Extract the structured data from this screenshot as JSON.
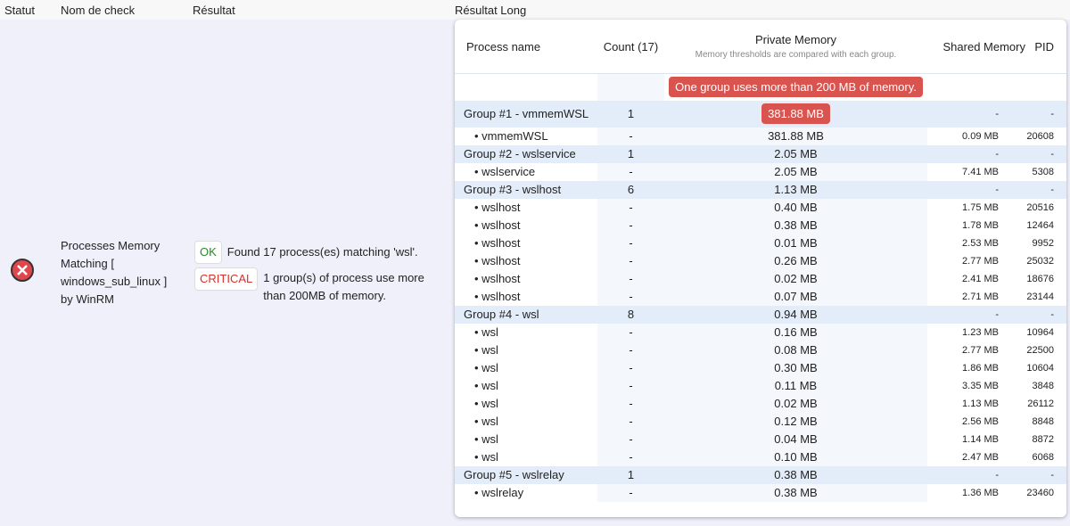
{
  "headers": [
    "Statut",
    "Nom de check",
    "Résultat",
    "Résultat Long"
  ],
  "check_name": "Processes Memory Matching [ windows_sub_linux ] by WinRM",
  "results": [
    {
      "badge": "OK",
      "text": "Found 17 process(es) matching 'wsl'."
    },
    {
      "badge": "CRITICAL",
      "text": "1 group(s) of process use more than 200MB of memory."
    }
  ],
  "table": {
    "columns": [
      "Process name",
      "Count (17)",
      "Private Memory",
      "Shared Memory",
      "PID"
    ],
    "private_memory_note": "Memory thresholds are compared with each group.",
    "alert": "One group uses more than 200 MB of memory.",
    "groups": [
      {
        "name": "Group #1 - vmmemWSL",
        "count": "1",
        "private": "381.88 MB",
        "shared": "-",
        "pid": "-",
        "critical": true,
        "processes": [
          {
            "name": "vmmemWSL",
            "count": "-",
            "private": "381.88 MB",
            "shared": "0.09 MB",
            "pid": "20608"
          }
        ]
      },
      {
        "name": "Group #2 - wslservice",
        "count": "1",
        "private": "2.05 MB",
        "shared": "-",
        "pid": "-",
        "processes": [
          {
            "name": "wslservice",
            "count": "-",
            "private": "2.05 MB",
            "shared": "7.41 MB",
            "pid": "5308"
          }
        ]
      },
      {
        "name": "Group #3 - wslhost",
        "count": "6",
        "private": "1.13 MB",
        "shared": "-",
        "pid": "-",
        "processes": [
          {
            "name": "wslhost",
            "count": "-",
            "private": "0.40 MB",
            "shared": "1.75 MB",
            "pid": "20516"
          },
          {
            "name": "wslhost",
            "count": "-",
            "private": "0.38 MB",
            "shared": "1.78 MB",
            "pid": "12464"
          },
          {
            "name": "wslhost",
            "count": "-",
            "private": "0.01 MB",
            "shared": "2.53 MB",
            "pid": "9952"
          },
          {
            "name": "wslhost",
            "count": "-",
            "private": "0.26 MB",
            "shared": "2.77 MB",
            "pid": "25032"
          },
          {
            "name": "wslhost",
            "count": "-",
            "private": "0.02 MB",
            "shared": "2.41 MB",
            "pid": "18676"
          },
          {
            "name": "wslhost",
            "count": "-",
            "private": "0.07 MB",
            "shared": "2.71 MB",
            "pid": "23144"
          }
        ]
      },
      {
        "name": "Group #4 - wsl",
        "count": "8",
        "private": "0.94 MB",
        "shared": "-",
        "pid": "-",
        "processes": [
          {
            "name": "wsl",
            "count": "-",
            "private": "0.16 MB",
            "shared": "1.23 MB",
            "pid": "10964"
          },
          {
            "name": "wsl",
            "count": "-",
            "private": "0.08 MB",
            "shared": "2.77 MB",
            "pid": "22500"
          },
          {
            "name": "wsl",
            "count": "-",
            "private": "0.30 MB",
            "shared": "1.86 MB",
            "pid": "10604"
          },
          {
            "name": "wsl",
            "count": "-",
            "private": "0.11 MB",
            "shared": "3.35 MB",
            "pid": "3848"
          },
          {
            "name": "wsl",
            "count": "-",
            "private": "0.02 MB",
            "shared": "1.13 MB",
            "pid": "26112"
          },
          {
            "name": "wsl",
            "count": "-",
            "private": "0.12 MB",
            "shared": "2.56 MB",
            "pid": "8848"
          },
          {
            "name": "wsl",
            "count": "-",
            "private": "0.04 MB",
            "shared": "1.14 MB",
            "pid": "8872"
          },
          {
            "name": "wsl",
            "count": "-",
            "private": "0.10 MB",
            "shared": "2.47 MB",
            "pid": "6068"
          }
        ]
      },
      {
        "name": "Group #5 - wslrelay",
        "count": "1",
        "private": "0.38 MB",
        "shared": "-",
        "pid": "-",
        "processes": [
          {
            "name": "wslrelay",
            "count": "-",
            "private": "0.38 MB",
            "shared": "1.36 MB",
            "pid": "23460"
          }
        ]
      }
    ]
  }
}
